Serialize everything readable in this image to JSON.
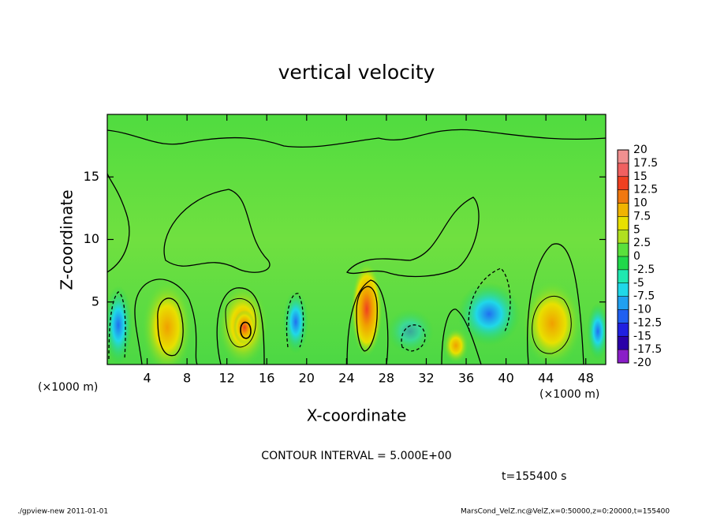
{
  "chart_data": {
    "type": "contour",
    "title": "vertical velocity",
    "x_label": "X-coordinate",
    "y_label": "Z-coordinate",
    "x_unit": "(×1000 m)",
    "xlim": [
      0,
      50
    ],
    "ylim": [
      0,
      20
    ],
    "xticks": [
      4,
      8,
      12,
      16,
      20,
      24,
      28,
      32,
      36,
      40,
      44,
      48
    ],
    "yticks": [
      5,
      10,
      15
    ],
    "colorbar_levels": [
      -20,
      -17.5,
      -15,
      -12.5,
      -10,
      -7.5,
      -5,
      -2.5,
      0,
      2.5,
      5,
      7.5,
      10,
      12.5,
      15,
      17.5,
      20
    ],
    "colorbar_colors": [
      "#8a1ec8",
      "#2a00a8",
      "#2020e0",
      "#2060f0",
      "#20a0f0",
      "#20d8e8",
      "#20e8b0",
      "#20d84a",
      "#5ae03c",
      "#b0e020",
      "#e8e000",
      "#f0b400",
      "#f07810",
      "#f04020",
      "#f06060",
      "#f09090"
    ],
    "contour_interval": "CONTOUR INTERVAL = 5.000E+00",
    "time_label": "t=155400 s",
    "footer_left": "./gpview-new  2011-01-01",
    "footer_right": "MarsCond_VelZ.nc@VelZ,x=0:50000,z=0:20000,t=155400"
  }
}
